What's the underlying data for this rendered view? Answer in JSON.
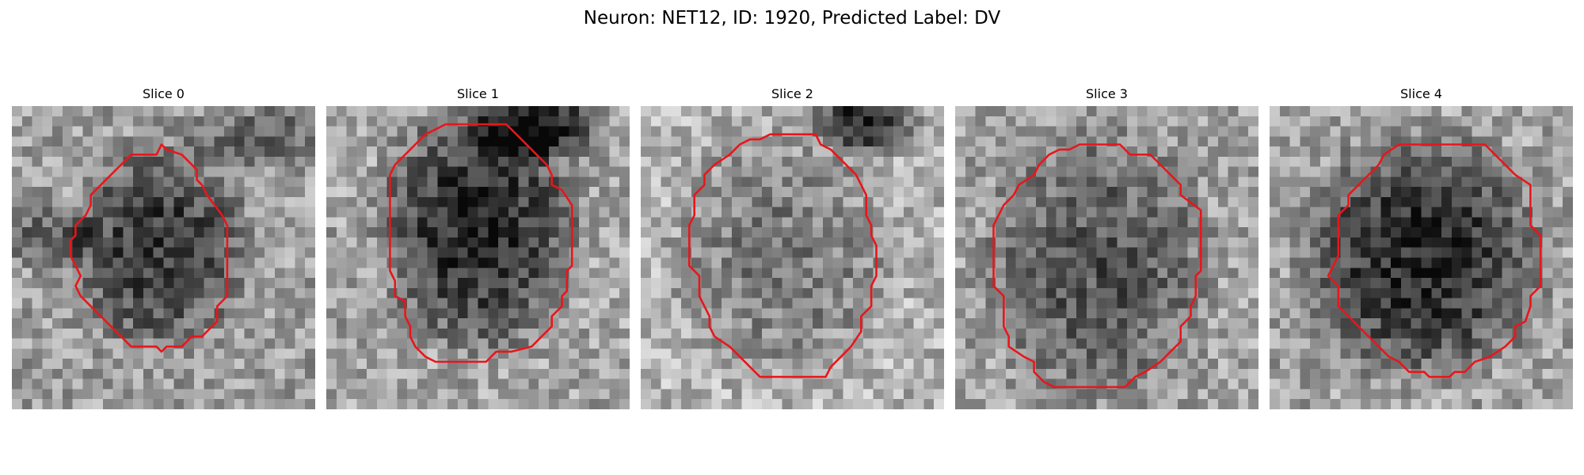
{
  "figure": {
    "title": "Neuron: NET12, ID: 1920, Predicted Label: DV"
  },
  "panels": [
    {
      "title": "Slice 0",
      "description": "grayscale microscopy slice with red neuron contour"
    },
    {
      "title": "Slice 1",
      "description": "grayscale microscopy slice with red neuron contour"
    },
    {
      "title": "Slice 2",
      "description": "grayscale microscopy slice with red neuron contour"
    },
    {
      "title": "Slice 3",
      "description": "grayscale microscopy slice with red neuron contour"
    },
    {
      "title": "Slice 4",
      "description": "grayscale microscopy slice with red neuron contour"
    }
  ],
  "style": {
    "contour_color": "#e8161b",
    "background": "#ffffff"
  }
}
